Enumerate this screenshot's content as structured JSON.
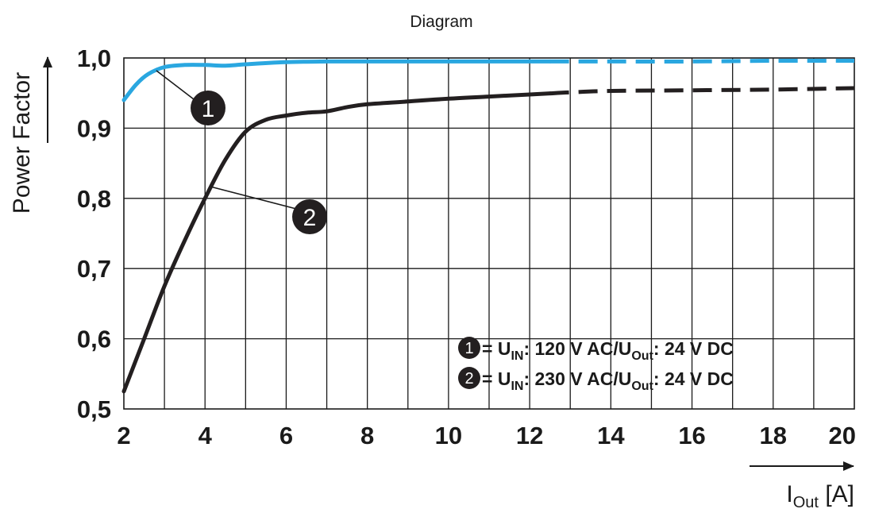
{
  "chart_data": {
    "type": "line",
    "title": "Diagram",
    "xlabel": {
      "main": "I",
      "sub": "Out",
      "unit": " [A]"
    },
    "ylabel": "Power Factor",
    "xlim": [
      2,
      20
    ],
    "ylim": [
      0.5,
      1.0
    ],
    "grid": true,
    "x_ticks": [
      "2",
      "4",
      "6",
      "8",
      "10",
      "12",
      "14",
      "16",
      "18",
      "20"
    ],
    "y_ticks": [
      "0,5",
      "0,6",
      "0,7",
      "0,8",
      "0,9",
      "1,0"
    ],
    "legend_position": "bottom-right",
    "series": [
      {
        "name": "1",
        "color": "#2aa7e0",
        "legend": {
          "marker": "1",
          "prefix": " = U",
          "sub1": "IN",
          "mid": ": 120 V AC/U",
          "sub2": "Out",
          "suffix": ": 24 V DC"
        },
        "callout": "1",
        "dashed_from_x": 12.5,
        "x": [
          2.0,
          2.3,
          2.6,
          3.0,
          3.5,
          4.0,
          4.5,
          5.0,
          6.0,
          7.0,
          8.0,
          10.0,
          12.0,
          14.0,
          16.0,
          18.0,
          20.0
        ],
        "y": [
          0.94,
          0.962,
          0.977,
          0.987,
          0.99,
          0.99,
          0.989,
          0.991,
          0.994,
          0.995,
          0.995,
          0.995,
          0.995,
          0.995,
          0.995,
          0.996,
          0.996
        ]
      },
      {
        "name": "2",
        "color": "#231f20",
        "legend": {
          "marker": "2",
          "prefix": " = U",
          "sub1": "IN",
          "mid": ": 230 V AC/U",
          "sub2": "Out",
          "suffix": ": 24 V DC"
        },
        "callout": "2",
        "dashed_from_x": 12.5,
        "x": [
          2.0,
          2.5,
          3.0,
          3.5,
          4.0,
          4.5,
          5.0,
          5.5,
          6.0,
          6.5,
          7.0,
          7.5,
          8.0,
          9.0,
          10.0,
          11.0,
          12.0,
          13.0,
          14.0,
          16.0,
          18.0,
          20.0
        ],
        "y": [
          0.525,
          0.6,
          0.675,
          0.74,
          0.8,
          0.855,
          0.895,
          0.912,
          0.918,
          0.922,
          0.924,
          0.93,
          0.934,
          0.938,
          0.942,
          0.945,
          0.948,
          0.951,
          0.953,
          0.954,
          0.955,
          0.957
        ]
      }
    ]
  }
}
